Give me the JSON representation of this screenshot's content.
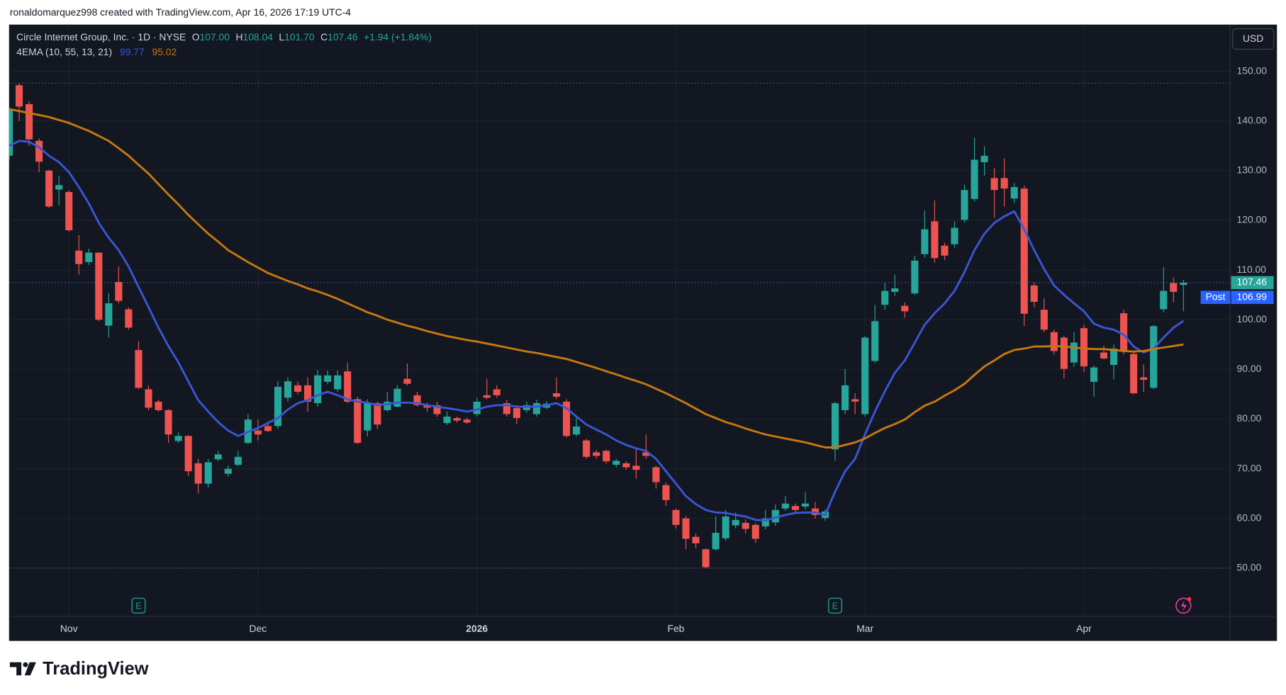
{
  "header": {
    "credit": "ronaldomarquez998 created with TradingView.com, Apr 16, 2026 17:19 UTC-4"
  },
  "footer": {
    "logo": "TradingView"
  },
  "chart_data": {
    "type": "candlestick",
    "title": "Circle Internet Group, Inc. · 1D · NYSE",
    "ohlc_legend": [
      {
        "key": "O",
        "value": "107.00"
      },
      {
        "key": "H",
        "value": "108.04"
      },
      {
        "key": "L",
        "value": "101.70"
      },
      {
        "key": "C",
        "value": "107.46"
      }
    ],
    "change": "+1.94 (+1.84%)",
    "currency": "USD",
    "up_color": "#26a69a",
    "down_color": "#ef5350",
    "open": [
      133.0,
      147.2,
      143.4,
      136.0,
      130.0,
      126.2,
      125.7,
      113.9,
      111.6,
      113.5,
      98.8,
      107.6,
      102.1,
      93.9,
      86.0,
      83.5,
      81.8,
      75.6,
      76.6,
      71.1,
      67.0,
      71.9,
      69.0,
      70.8,
      75.2,
      77.7,
      78.6,
      78.6,
      84.3,
      86.8,
      86.8,
      83.2,
      87.5,
      86.0,
      89.6,
      84.0,
      77.7,
      83.2,
      81.8,
      82.5,
      88.1,
      84.8,
      82.8,
      82.8,
      79.2,
      80.2,
      79.9,
      81.0,
      84.8,
      86.0,
      83.2,
      82.2,
      81.8,
      81.0,
      82.3,
      85.2,
      83.5,
      76.9,
      75.7,
      73.3,
      73.6,
      70.8,
      71.1,
      70.6,
      73.3,
      70.3,
      66.7,
      61.7,
      60.0,
      56.3,
      53.8,
      53.8,
      56.0,
      58.6,
      59.1,
      58.7,
      58.4,
      59.2,
      62.0,
      62.5,
      62.4,
      62.0,
      60.1,
      73.9,
      81.8,
      84.0,
      81.0,
      91.7,
      103.0,
      105.6,
      102.8,
      105.3,
      113.2,
      119.8,
      114.9,
      115.2,
      120.1,
      124.3,
      131.7,
      128.5,
      128.5,
      124.4,
      126.4,
      106.9,
      102.0,
      97.5,
      96.4,
      91.4,
      98.3,
      87.5,
      93.4,
      90.9,
      101.3,
      93.1,
      88.4,
      86.3,
      102.1,
      107.4,
      107.0
    ],
    "high": [
      142.5,
      147.6,
      144.0,
      136.5,
      130.2,
      128.9,
      126.0,
      117.0,
      114.3,
      113.5,
      105.3,
      110.7,
      102.5,
      95.7,
      86.8,
      83.9,
      82.0,
      77.3,
      76.8,
      72.0,
      72.0,
      73.6,
      70.7,
      73.6,
      81.0,
      79.9,
      79.5,
      87.6,
      88.4,
      87.5,
      88.4,
      89.9,
      89.8,
      89.8,
      91.4,
      84.5,
      84.0,
      83.5,
      85.5,
      86.8,
      91.2,
      85.5,
      83.3,
      83.5,
      81.5,
      80.5,
      80.3,
      84.3,
      88.1,
      86.8,
      83.9,
      82.8,
      83.5,
      83.9,
      83.6,
      88.4,
      84.0,
      80.2,
      76.0,
      73.8,
      73.9,
      72.0,
      71.5,
      74.1,
      76.9,
      70.6,
      67.2,
      62.0,
      60.5,
      57.0,
      54.0,
      60.4,
      61.7,
      61.2,
      59.8,
      59.0,
      61.7,
      62.8,
      64.5,
      63.0,
      65.3,
      63.3,
      61.8,
      83.5,
      90.1,
      85.2,
      96.7,
      103.0,
      107.4,
      109.1,
      103.5,
      112.9,
      122.0,
      124.0,
      115.5,
      119.8,
      127.2,
      136.6,
      134.9,
      130.5,
      132.5,
      127.5,
      127.0,
      107.5,
      104.3,
      98.0,
      96.8,
      97.5,
      99.0,
      90.8,
      94.8,
      95.0,
      102.0,
      93.8,
      91.0,
      98.9,
      110.6,
      108.5,
      108.04
    ],
    "low": [
      132.0,
      140.0,
      135.0,
      129.7,
      122.5,
      123.0,
      117.8,
      109.1,
      111.0,
      99.7,
      96.4,
      103.3,
      98.0,
      86.0,
      81.8,
      81.5,
      75.2,
      75.2,
      68.6,
      65.0,
      66.2,
      71.5,
      68.4,
      70.5,
      75.0,
      75.7,
      77.4,
      78.0,
      83.5,
      85.0,
      81.5,
      82.5,
      87.0,
      85.5,
      83.2,
      75.0,
      76.5,
      78.0,
      81.5,
      82.3,
      86.8,
      82.5,
      81.5,
      80.5,
      78.8,
      79.3,
      79.0,
      80.5,
      84.0,
      84.3,
      80.5,
      79.0,
      81.3,
      80.5,
      82.0,
      84.0,
      76.3,
      76.5,
      72.0,
      72.0,
      71.0,
      70.3,
      69.8,
      68.0,
      72.0,
      66.0,
      62.5,
      58.0,
      53.8,
      54.0,
      50.0,
      53.5,
      55.5,
      58.0,
      57.0,
      55.1,
      57.8,
      58.5,
      61.5,
      61.0,
      61.8,
      60.0,
      59.5,
      71.6,
      81.0,
      81.0,
      80.5,
      91.3,
      102.0,
      104.8,
      100.4,
      105.0,
      112.5,
      111.5,
      112.0,
      114.5,
      119.5,
      123.8,
      129.0,
      120.5,
      122.8,
      123.5,
      98.7,
      102.5,
      97.5,
      93.0,
      88.2,
      90.5,
      89.5,
      84.5,
      92.0,
      88.0,
      93.0,
      85.0,
      85.5,
      86.0,
      101.5,
      103.5,
      101.7
    ],
    "close": [
      142.1,
      142.9,
      136.3,
      131.8,
      122.8,
      127.1,
      118.0,
      111.2,
      113.5,
      100.0,
      103.3,
      103.8,
      98.4,
      86.3,
      82.3,
      81.8,
      76.9,
      76.6,
      69.5,
      67.0,
      71.3,
      72.9,
      70.0,
      72.4,
      79.9,
      76.9,
      77.6,
      86.5,
      87.6,
      85.5,
      83.5,
      88.8,
      88.8,
      88.8,
      83.5,
      75.2,
      83.2,
      78.9,
      83.5,
      86.1,
      87.1,
      82.8,
      82.3,
      81.0,
      80.5,
      79.7,
      79.3,
      83.5,
      84.3,
      84.8,
      81.0,
      80.2,
      82.8,
      83.2,
      83.1,
      84.5,
      76.6,
      78.5,
      72.4,
      72.6,
      71.5,
      71.6,
      70.3,
      69.8,
      72.6,
      67.3,
      63.7,
      58.7,
      55.9,
      55.0,
      50.2,
      57.1,
      60.4,
      59.7,
      57.9,
      55.9,
      60.0,
      61.7,
      63.0,
      61.7,
      63.0,
      60.7,
      61.4,
      83.2,
      86.8,
      83.5,
      96.4,
      99.7,
      105.8,
      106.3,
      101.7,
      111.9,
      118.2,
      112.4,
      112.9,
      118.5,
      126.1,
      132.2,
      133.0,
      126.1,
      126.4,
      126.7,
      101.2,
      103.6,
      98.0,
      93.7,
      90.1,
      95.4,
      90.6,
      90.4,
      92.2,
      94.2,
      93.7,
      85.2,
      87.9,
      98.7,
      105.8,
      105.6,
      107.46
    ],
    "indicator": "4EMA (10, 55, 13, 21)",
    "series": [
      {
        "color": "#3a56d4",
        "values": [
          135.0,
          136.0,
          135.8,
          134.7,
          133.0,
          131.7,
          129.7,
          126.7,
          123.4,
          119.5,
          116.5,
          114.0,
          110.7,
          106.6,
          102.5,
          98.4,
          94.7,
          91.4,
          87.6,
          83.8,
          81.5,
          79.4,
          77.7,
          76.6,
          77.4,
          78.2,
          79.2,
          80.2,
          81.9,
          83.2,
          83.8,
          84.8,
          85.5,
          84.8,
          84.0,
          83.5,
          83.3,
          82.8,
          83.0,
          83.3,
          83.3,
          83.2,
          82.8,
          82.5,
          82.2,
          81.9,
          81.5,
          81.9,
          82.5,
          82.8,
          82.8,
          82.5,
          82.5,
          82.5,
          82.8,
          83.2,
          82.2,
          80.5,
          78.9,
          77.9,
          76.9,
          75.7,
          74.8,
          74.1,
          73.6,
          72.0,
          69.5,
          67.0,
          64.5,
          62.9,
          61.7,
          61.2,
          61.1,
          60.7,
          60.4,
          59.7,
          59.6,
          60.2,
          60.7,
          61.1,
          61.2,
          61.2,
          60.7,
          65.4,
          69.5,
          72.0,
          76.9,
          81.5,
          85.6,
          89.3,
          91.8,
          95.4,
          99.0,
          101.3,
          103.3,
          105.8,
          109.6,
          114.0,
          117.3,
          119.5,
          120.8,
          121.8,
          118.2,
          114.0,
          110.2,
          106.9,
          105.0,
          103.3,
          101.7,
          99.2,
          98.4,
          98.0,
          97.0,
          94.6,
          93.4,
          94.2,
          96.4,
          98.4,
          99.77
        ]
      },
      {
        "color": "#c7780f",
        "values": [
          142.4,
          142.0,
          141.6,
          141.2,
          140.8,
          140.2,
          139.6,
          138.8,
          138.0,
          137.0,
          136.0,
          134.5,
          133.0,
          131.2,
          129.4,
          127.3,
          125.2,
          123.2,
          121.1,
          119.2,
          117.3,
          115.7,
          114.0,
          112.8,
          111.6,
          110.5,
          109.4,
          108.6,
          107.8,
          107.1,
          106.3,
          105.7,
          105.0,
          104.2,
          103.3,
          102.4,
          101.5,
          100.8,
          100.0,
          99.4,
          98.8,
          98.3,
          97.7,
          97.2,
          96.7,
          96.3,
          95.9,
          95.6,
          95.2,
          94.8,
          94.4,
          94.0,
          93.6,
          93.3,
          92.9,
          92.5,
          92.1,
          91.5,
          90.9,
          90.3,
          89.6,
          89.0,
          88.3,
          87.7,
          87.0,
          86.1,
          85.2,
          84.2,
          83.2,
          82.1,
          81.0,
          80.2,
          79.4,
          78.8,
          78.1,
          77.5,
          76.9,
          76.5,
          76.1,
          75.7,
          75.3,
          74.8,
          74.3,
          74.3,
          74.8,
          75.3,
          76.1,
          77.2,
          78.2,
          79.0,
          79.9,
          81.4,
          82.7,
          83.5,
          84.7,
          85.8,
          87.1,
          88.9,
          90.6,
          91.8,
          93.1,
          93.9,
          94.2,
          94.6,
          94.6,
          94.7,
          94.6,
          94.4,
          94.2,
          94.1,
          94.1,
          93.9,
          93.7,
          93.6,
          93.7,
          94.1,
          94.4,
          94.7,
          95.02
        ]
      }
    ],
    "xlim": [
      0,
      122.7
    ],
    "xticks": [
      {
        "value": 6,
        "label": "Nov"
      },
      {
        "value": 25,
        "label": "Dec"
      },
      {
        "value": 47,
        "label": "2026"
      },
      {
        "value": 67,
        "label": "Feb"
      },
      {
        "value": 86,
        "label": "Mar"
      },
      {
        "value": 108,
        "label": "Apr"
      }
    ],
    "ylim": [
      40.3,
      159.4
    ],
    "yticks": [
      {
        "value": 50,
        "label": "50.00"
      },
      {
        "value": 60,
        "label": "60.00"
      },
      {
        "value": 70,
        "label": "70.00"
      },
      {
        "value": 80,
        "label": "80.00"
      },
      {
        "value": 90,
        "label": "90.00"
      },
      {
        "value": 100,
        "label": "100.00"
      },
      {
        "value": 110,
        "label": "110.00"
      },
      {
        "value": 120,
        "label": "120.00"
      },
      {
        "value": 130,
        "label": "130.00"
      },
      {
        "value": 140,
        "label": "140.00"
      },
      {
        "value": 150,
        "label": "150.00"
      }
    ],
    "grid": true,
    "post_label": "Post",
    "post_price": "106.99",
    "event_markers": [
      {
        "x": 13,
        "label": "E"
      },
      {
        "x": 83,
        "label": "E"
      }
    ]
  }
}
